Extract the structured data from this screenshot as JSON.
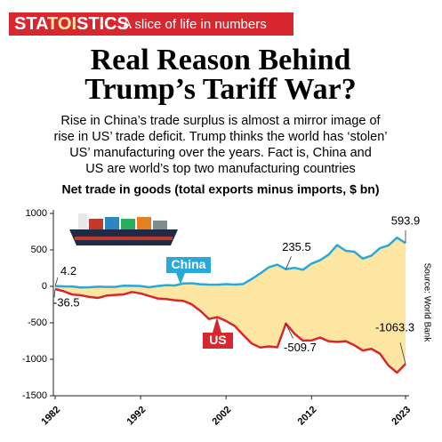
{
  "brand": [
    "STA",
    "TOI",
    "STICS"
  ],
  "tagline": "A slice of life in numbers",
  "chart_data": {
    "type": "line",
    "title": [
      "Real Reason Behind",
      "Trump’s Tariff War?"
    ],
    "subtitle": [
      "Rise in China’s trade surplus is almost a mirror image of",
      "rise in US’ trade deficit. Trump thinks the world has ‘stolen’",
      "US’ manufacturing over the years. Fact is, China and",
      "US are world’s top two manufacturing countries"
    ],
    "y_label": "Net trade in goods (total exports minus imports, $ bn)",
    "source": "Source: World Bank",
    "x": [
      1982,
      1983,
      1984,
      1985,
      1986,
      1987,
      1988,
      1989,
      1990,
      1991,
      1992,
      1993,
      1994,
      1995,
      1996,
      1997,
      1998,
      1999,
      2000,
      2001,
      2002,
      2003,
      2004,
      2005,
      2006,
      2007,
      2008,
      2009,
      2010,
      2011,
      2012,
      2013,
      2014,
      2015,
      2016,
      2017,
      2018,
      2019,
      2020,
      2021,
      2022,
      2023
    ],
    "xlim": [
      1982,
      2023
    ],
    "xticks": [
      1982,
      1992,
      2002,
      2012,
      2023
    ],
    "ylim": [
      -1500,
      1000
    ],
    "yticks": [
      1000,
      500,
      0,
      -500,
      -1000,
      -1500
    ],
    "series": [
      {
        "name": "China",
        "color": "#29a9da",
        "values": [
          4.2,
          0,
          -1,
          -15,
          -12,
          -4,
          -8,
          -7,
          9,
          8,
          4,
          -12,
          5,
          17,
          12,
          40,
          43,
          29,
          24,
          23,
          30,
          25,
          32,
          102,
          177,
          262,
          298,
          235.5,
          254,
          228,
          312,
          359,
          435,
          567,
          488,
          476,
          381,
          421,
          524,
          562,
          669,
          593.9
        ]
      },
      {
        "name": "US",
        "color": "#d7282f",
        "values": [
          -36.5,
          -67,
          -112,
          -122,
          -145,
          -159,
          -127,
          -118,
          -111,
          -77,
          -97,
          -132,
          -166,
          -174,
          -191,
          -198,
          -248,
          -337,
          -447,
          -422,
          -475,
          -542,
          -666,
          -783,
          -838,
          -823,
          -835,
          -509.7,
          -649,
          -744,
          -741,
          -702,
          -752,
          -762,
          -752,
          -807,
          -880,
          -857,
          -922,
          -1085,
          -1183,
          -1063.3
        ]
      }
    ],
    "fill_color": "#fde6a2"
  }
}
